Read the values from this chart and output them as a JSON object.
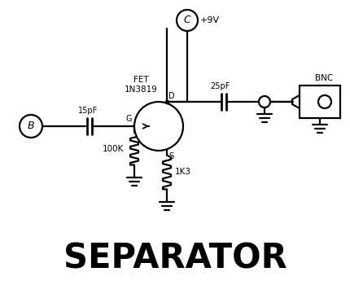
{
  "title": "SEPARATOR",
  "title_fontsize": 30,
  "title_fontweight": "bold",
  "bg_color": "#ffffff",
  "line_color": "#000000",
  "lw": 1.6,
  "fig_width": 4.3,
  "fig_height": 3.5,
  "dpi": 100,
  "B_label": "B",
  "C_label": "C",
  "plus9v": "+9V",
  "fet_label1": "FET",
  "fet_label2": "1N3819",
  "cap1_label": "15pF",
  "cap2_label": "25pF",
  "r1_label": "100K",
  "r2_label": "1K3",
  "G_label": "G",
  "D_label": "D",
  "S_label": "S",
  "BNC_label": "BNC"
}
